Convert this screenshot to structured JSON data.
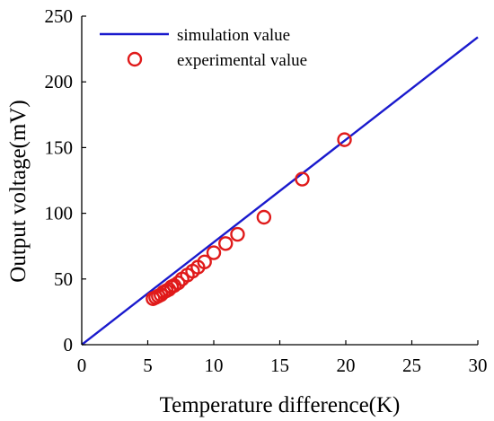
{
  "chart_data": {
    "type": "line",
    "title": "",
    "xlabel": "Temperature difference(K)",
    "ylabel": "Output voltage(mV)",
    "xlim": [
      0,
      30
    ],
    "ylim": [
      0,
      250
    ],
    "xticks": [
      0,
      5,
      10,
      15,
      20,
      25,
      30
    ],
    "yticks": [
      0,
      50,
      100,
      150,
      200,
      250
    ],
    "grid": false,
    "legend_position": "top-left",
    "series": [
      {
        "name": "simulation value",
        "type": "line",
        "color": "#1a1acd",
        "x": [
          0,
          30
        ],
        "y": [
          0,
          234
        ]
      },
      {
        "name": "experimental value",
        "type": "scatter",
        "marker": "open-circle",
        "color": "#e01a1a",
        "x": [
          5.4,
          5.6,
          5.8,
          6.0,
          6.2,
          6.4,
          6.6,
          6.8,
          7.0,
          7.3,
          7.6,
          8.0,
          8.4,
          8.8,
          9.3,
          10.0,
          10.9,
          11.8,
          13.8,
          16.7,
          19.9
        ],
        "y": [
          35,
          36,
          37,
          38,
          40,
          41,
          42,
          44,
          45,
          47,
          50,
          53,
          56,
          59,
          63,
          70,
          77,
          84,
          97,
          126,
          156
        ]
      }
    ]
  }
}
